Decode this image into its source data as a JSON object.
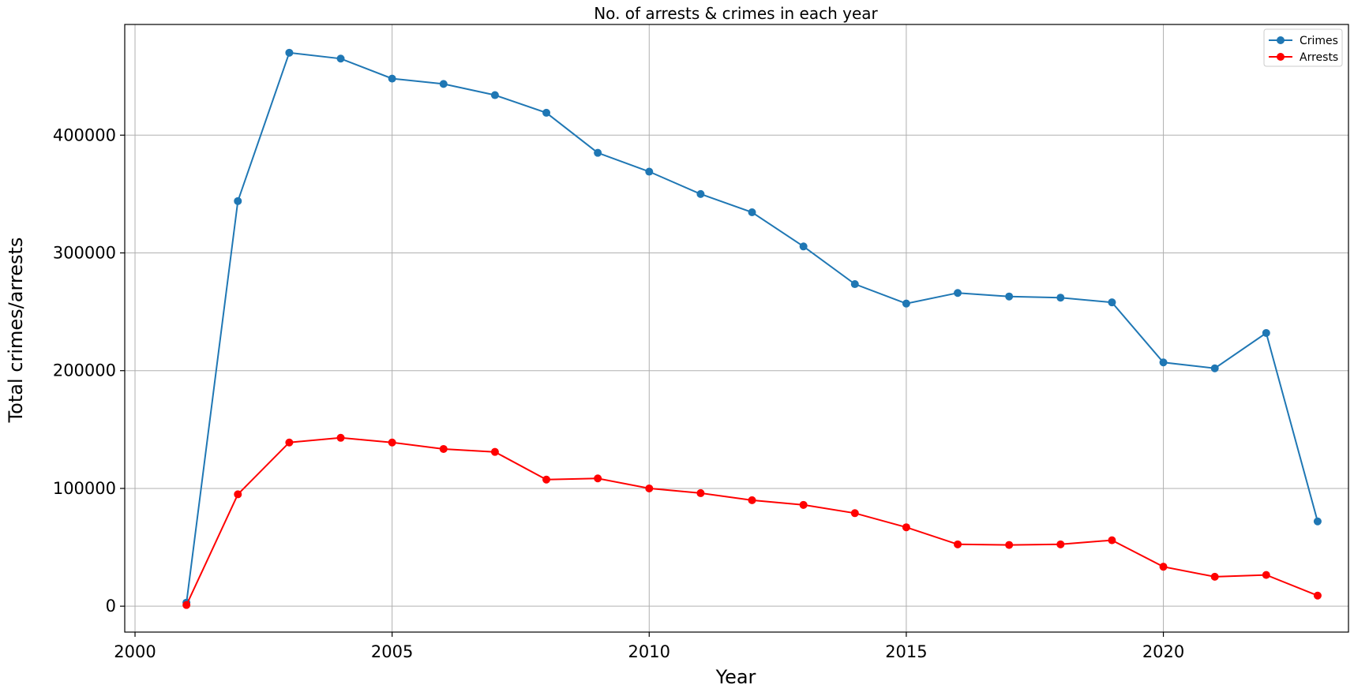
{
  "chart_data": {
    "type": "line",
    "title": "No. of arrests & crimes in each year",
    "xlabel": "Year",
    "ylabel": "Total crimes/arrests",
    "xlim": [
      1999.8,
      2023.6
    ],
    "ylim": [
      -22000,
      494000
    ],
    "xticks": [
      2000,
      2005,
      2010,
      2015,
      2020
    ],
    "yticks": [
      0,
      100000,
      200000,
      300000,
      400000
    ],
    "grid": true,
    "legend_position": "top-right",
    "x": [
      2001,
      2002,
      2003,
      2004,
      2005,
      2006,
      2007,
      2008,
      2009,
      2010,
      2011,
      2012,
      2013,
      2014,
      2015,
      2016,
      2017,
      2018,
      2019,
      2020,
      2021,
      2022,
      2023
    ],
    "series": [
      {
        "name": "Crimes",
        "color": "#1f77b4",
        "marker": "circle",
        "values": [
          3000,
          344000,
          470000,
          465000,
          448000,
          443500,
          434000,
          419000,
          385000,
          369000,
          350000,
          334500,
          305500,
          273500,
          257000,
          266000,
          263000,
          262000,
          258000,
          207000,
          202000,
          232000,
          72000
        ]
      },
      {
        "name": "Arrests",
        "color": "#ff0000",
        "marker": "circle",
        "values": [
          1000,
          95000,
          139000,
          143000,
          139000,
          133500,
          131000,
          107500,
          108500,
          100000,
          96000,
          90000,
          86000,
          79000,
          67000,
          52500,
          52000,
          52500,
          56000,
          33500,
          25000,
          26500,
          9000
        ]
      }
    ]
  }
}
